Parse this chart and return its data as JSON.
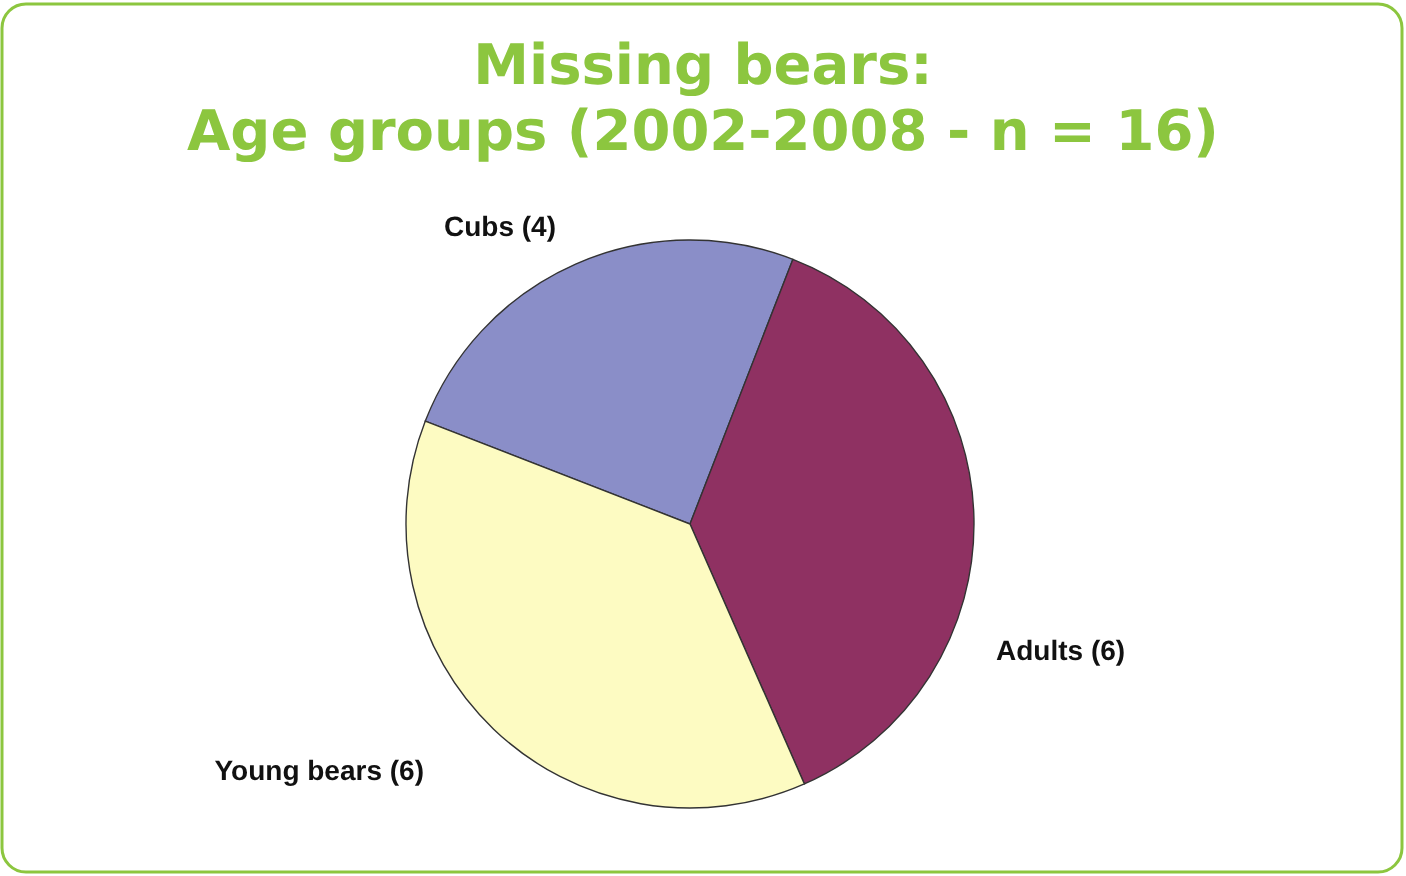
{
  "chart_data": {
    "type": "pie",
    "title": "Missing bears:\nAge groups (2002-2008 - n = 16)",
    "categories": [
      "Cubs (4)",
      "Adults (6)",
      "Young bears (6)"
    ],
    "values": [
      4,
      6,
      6
    ],
    "colors": [
      "#8a8ec8",
      "#8f3162",
      "#fdfbc2"
    ]
  }
}
